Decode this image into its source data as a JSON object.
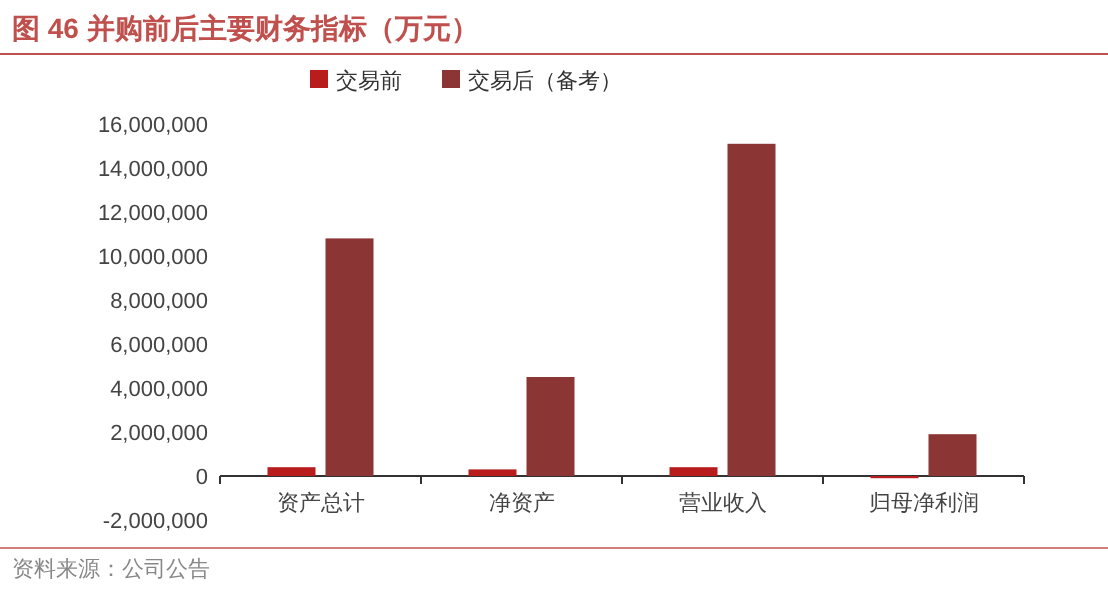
{
  "chart_data": {
    "type": "bar",
    "title": "图 46 并购前后主要财务指标（万元）",
    "categories": [
      "资产总计",
      "净资产",
      "营业收入",
      "归母净利润"
    ],
    "series": [
      {
        "name": "交易前",
        "color": "#b81c1c",
        "values": [
          400000,
          300000,
          400000,
          -100000
        ]
      },
      {
        "name": "交易后（备考）",
        "color": "#8b3535",
        "values": [
          10800000,
          4500000,
          15100000,
          1900000
        ]
      }
    ],
    "ylim": [
      -2000000,
      16000000
    ],
    "yticks": [
      {
        "value": -2000000,
        "label": "-2,000,000"
      },
      {
        "value": 0,
        "label": "0"
      },
      {
        "value": 2000000,
        "label": "2,000,000"
      },
      {
        "value": 4000000,
        "label": "4,000,000"
      },
      {
        "value": 6000000,
        "label": "6,000,000"
      },
      {
        "value": 8000000,
        "label": "8,000,000"
      },
      {
        "value": 10000000,
        "label": "10,000,000"
      },
      {
        "value": 12000000,
        "label": "12,000,000"
      },
      {
        "value": 14000000,
        "label": "14,000,000"
      },
      {
        "value": 16000000,
        "label": "16,000,000"
      }
    ],
    "legend": "top",
    "annotations": [
      "资料来源：公司公告"
    ]
  }
}
